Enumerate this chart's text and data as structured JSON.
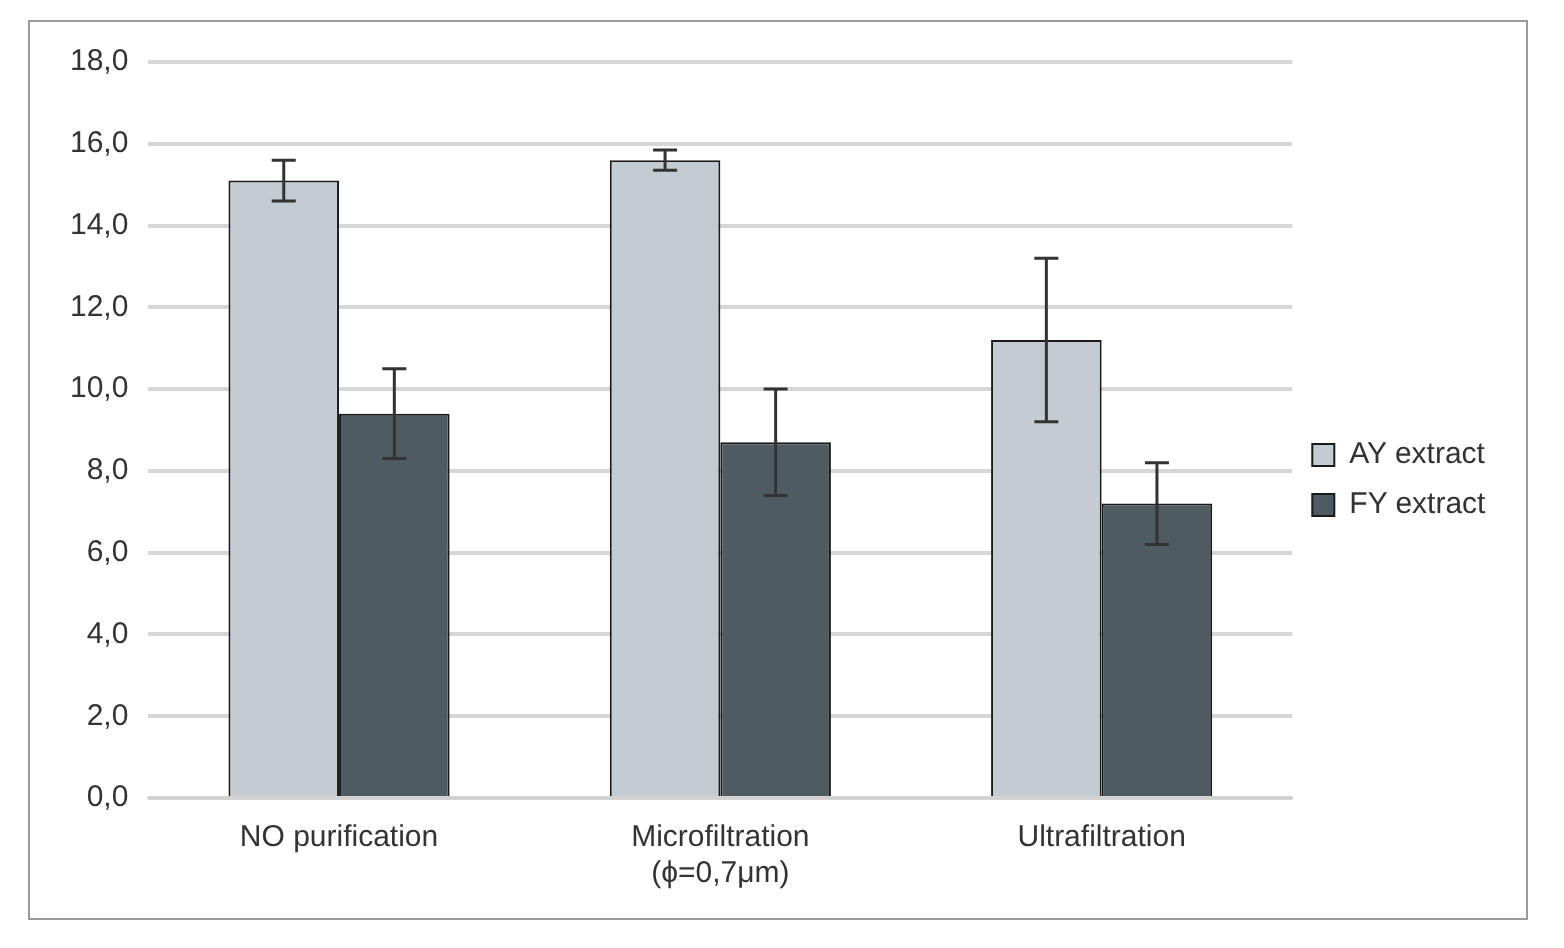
{
  "chart_data": {
    "type": "bar",
    "categories": [
      "NO purification",
      "Microfiltration\n(ϕ=0,7μm)",
      "Ultrafiltration"
    ],
    "series": [
      {
        "name": "AY extract",
        "color": "#c3ccd2",
        "values": [
          15.1,
          15.6,
          11.2
        ],
        "errors": [
          0.5,
          0.25,
          2.0
        ]
      },
      {
        "name": "FY extract",
        "color": "#4e5b63",
        "values": [
          9.4,
          8.7,
          7.2
        ],
        "errors": [
          1.1,
          1.3,
          1.0
        ]
      }
    ],
    "ylim": [
      0,
      18
    ],
    "yticks": [
      {
        "value": 0,
        "label": "0,0"
      },
      {
        "value": 2,
        "label": "2,0"
      },
      {
        "value": 4,
        "label": "4,0"
      },
      {
        "value": 6,
        "label": "6,0"
      },
      {
        "value": 8,
        "label": "8,0"
      },
      {
        "value": 10,
        "label": "10,0"
      },
      {
        "value": 12,
        "label": "12,0"
      },
      {
        "value": 14,
        "label": "14,0"
      },
      {
        "value": 16,
        "label": "16,0"
      },
      {
        "value": 18,
        "label": "18,0"
      }
    ],
    "grid": "y",
    "legend": "right"
  }
}
